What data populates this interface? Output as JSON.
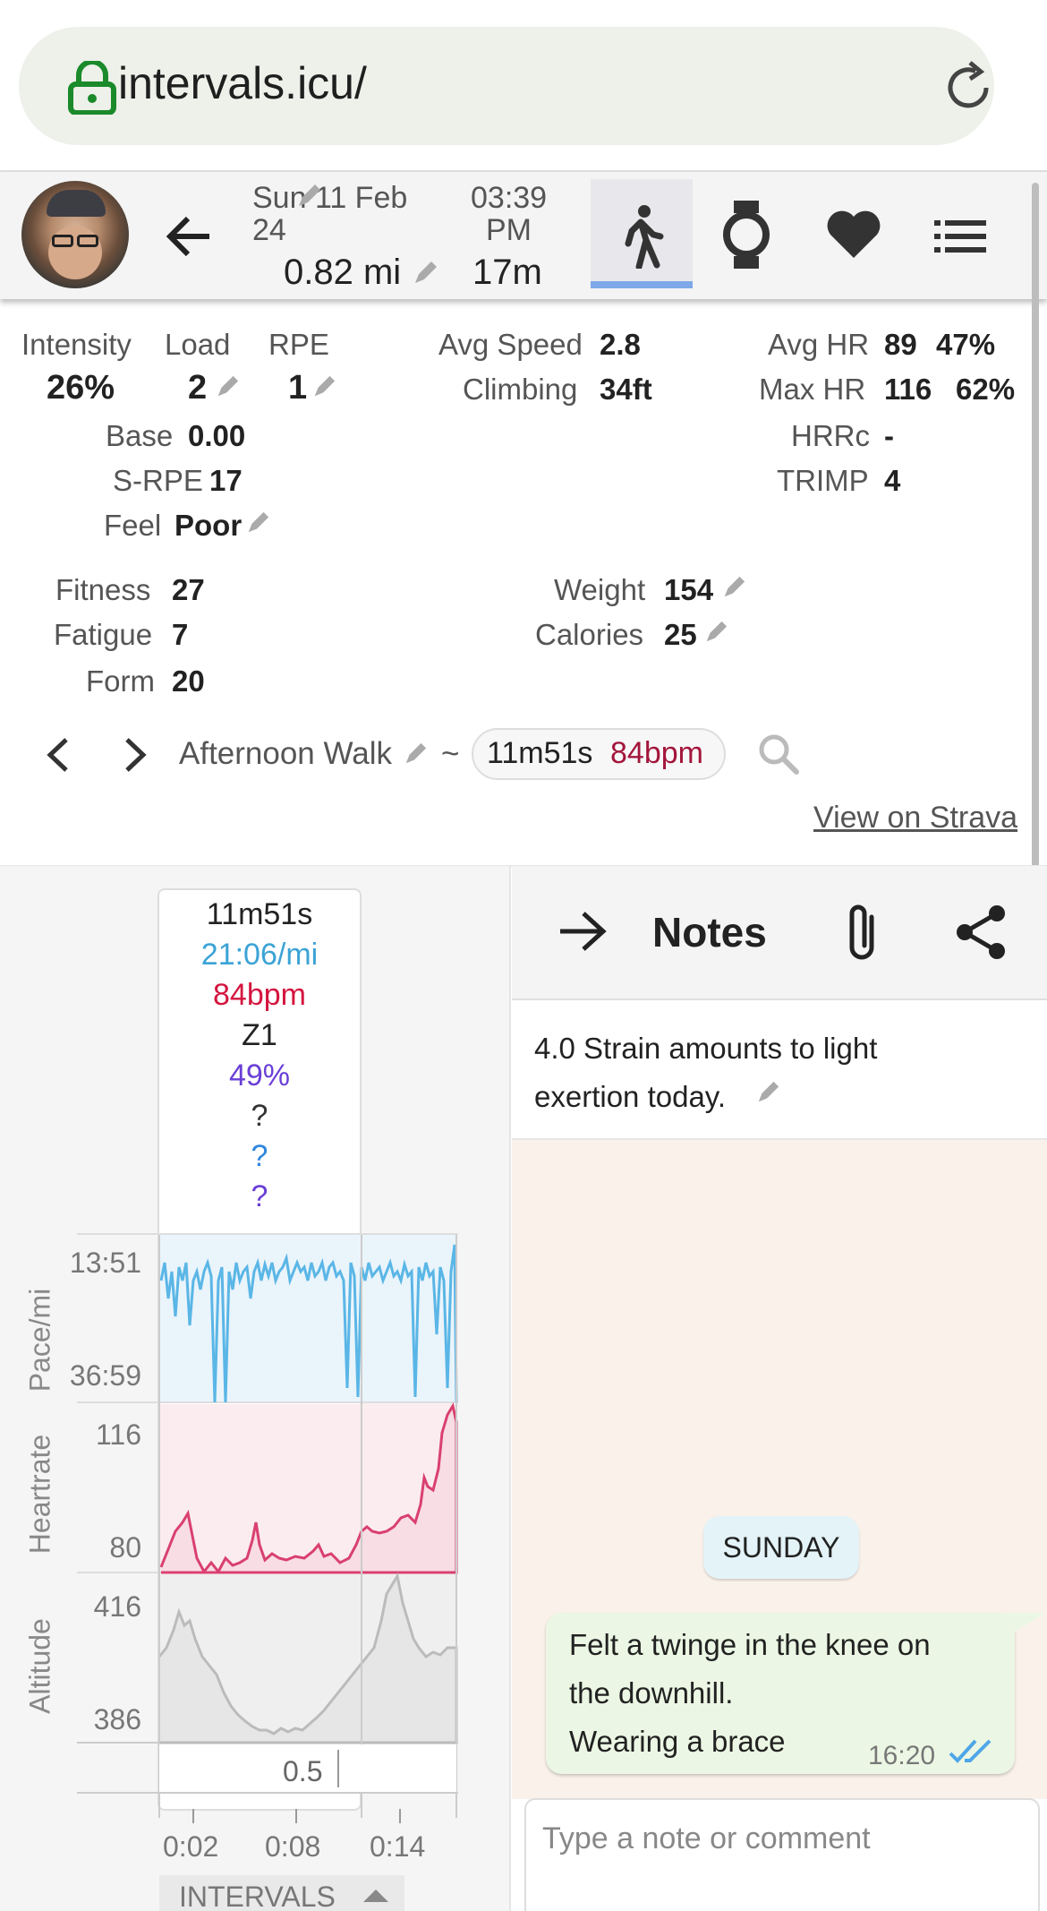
{
  "browser": {
    "url": "intervals.icu/"
  },
  "header": {
    "date_line1": "Sun 11 Feb",
    "date_line2": "24",
    "distance": "0.82 mi",
    "time_line1": "03:39",
    "time_line2": "PM",
    "duration": "17m"
  },
  "stats": {
    "intensity_label": "Intensity",
    "intensity_value": "26%",
    "load_label": "Load",
    "load_value": "2",
    "rpe_label": "RPE",
    "rpe_value": "1",
    "base_label": "Base",
    "base_value": "0.00",
    "srpe_label": "S-RPE",
    "srpe_value": "17",
    "feel_label": "Feel",
    "feel_value": "Poor",
    "avg_speed_label": "Avg Speed",
    "avg_speed_value": "2.8",
    "climbing_label": "Climbing",
    "climbing_value": "34ft",
    "avg_hr_label": "Avg HR",
    "avg_hr_value": "89",
    "avg_hr_pct": "47%",
    "max_hr_label": "Max HR",
    "max_hr_value": "116",
    "max_hr_pct": "62%",
    "hrrc_label": "HRRc",
    "hrrc_value": "-",
    "trimp_label": "TRIMP",
    "trimp_value": "4",
    "fitness_label": "Fitness",
    "fitness_value": "27",
    "fatigue_label": "Fatigue",
    "fatigue_value": "7",
    "form_label": "Form",
    "form_value": "20",
    "weight_label": "Weight",
    "weight_value": "154",
    "calories_label": "Calories",
    "calories_value": "25"
  },
  "activity": {
    "name": "Afternoon Walk",
    "tilde": "~",
    "pill_time": "11m51s",
    "pill_hr": "84bpm",
    "strava_link": "View on Strava"
  },
  "popup": {
    "duration": "11m51s",
    "pace": "21:06/mi",
    "hr": "84bpm",
    "zone": "Z1",
    "pct": "49%",
    "q1": "?",
    "q2": "?",
    "q3": "?"
  },
  "charts": {
    "pace_label": "Pace/mi",
    "pace_top": "13:51",
    "pace_bottom": "36:59",
    "hr_label": "Heartrate",
    "hr_top": "116",
    "hr_bottom": "80",
    "alt_label": "Altitude",
    "alt_top": "416",
    "alt_bottom": "386",
    "interval_marker": "0.5",
    "x_ticks": [
      "0:02",
      "0:08",
      "0:14"
    ],
    "intervals_tab": "INTERVALS"
  },
  "notes": {
    "title": "Notes",
    "summary": "4.0 Strain amounts to light exertion today.",
    "day_chip": "SUNDAY",
    "message_line1": "Felt a twinge in the knee on",
    "message_line2": "the downhill.",
    "message_line3": "Wearing a brace",
    "message_time": "16:20",
    "comment_placeholder": "Type a note or comment"
  },
  "colors": {
    "pace": "#6fc1e8",
    "heartrate": "#d94070",
    "altitude": "#b8b8b8",
    "hr_text": "#c0143c",
    "percent_text": "#6a3fd6",
    "link_blue": "#2e86de"
  }
}
